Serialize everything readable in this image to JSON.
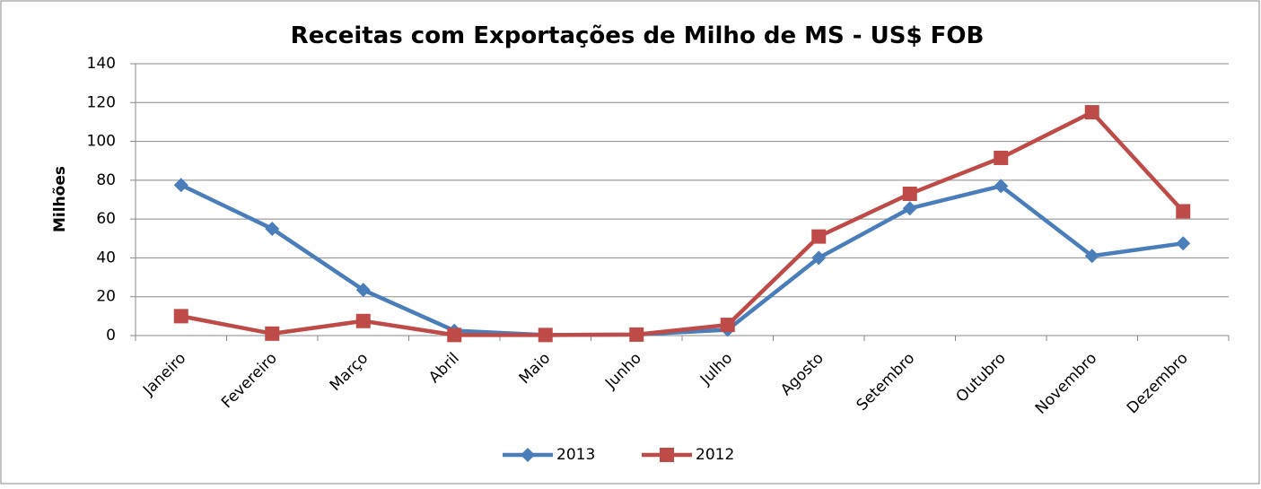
{
  "chart_data": {
    "type": "line",
    "title": "Receitas com Exportações de Milho de MS - US$ FOB",
    "y_label": "Milhões",
    "categories": [
      "Janeiro",
      "Fevereiro",
      "Março",
      "Abril",
      "Maio",
      "Junho",
      "Julho",
      "Agosto",
      "Setembro",
      "Outubro",
      "Novembro",
      "Dezembro"
    ],
    "series": [
      {
        "name": "2013",
        "color": "#4a7ebb",
        "marker": "diamond",
        "values": [
          77.5,
          55,
          23.5,
          2.5,
          0.3,
          0.5,
          3,
          40,
          65.5,
          77,
          41,
          47.5
        ]
      },
      {
        "name": "2012",
        "color": "#be4b48",
        "marker": "square",
        "values": [
          10,
          1,
          7.5,
          0.3,
          0.3,
          0.5,
          5.5,
          51,
          73,
          91.5,
          115,
          64
        ]
      }
    ],
    "ylim": [
      0,
      140
    ],
    "yticks": [
      0,
      20,
      40,
      60,
      80,
      100,
      120,
      140
    ],
    "grid": true,
    "legend": "bottom"
  }
}
